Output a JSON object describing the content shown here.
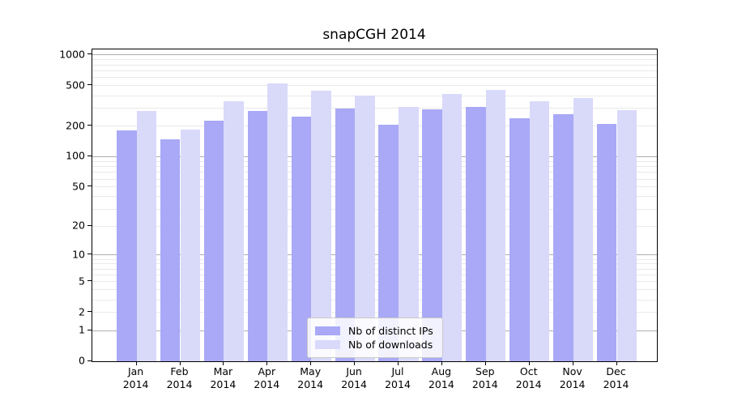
{
  "title": "snapCGH 2014",
  "chart_data": {
    "type": "bar",
    "title": "snapCGH 2014",
    "categories": [
      "Jan",
      "Feb",
      "Mar",
      "Apr",
      "May",
      "Jun",
      "Jul",
      "Aug",
      "Sep",
      "Oct",
      "Nov",
      "Dec"
    ],
    "year": "2014",
    "series": [
      {
        "name": "Nb of distinct IPs",
        "color": "#a9a9f7",
        "values": [
          183,
          148,
          228,
          280,
          250,
          298,
          205,
          293,
          311,
          241,
          264,
          209
        ]
      },
      {
        "name": "Nb of downloads",
        "color": "#d9d9fa",
        "values": [
          285,
          185,
          355,
          530,
          450,
          397,
          307,
          412,
          457,
          354,
          378,
          287
        ]
      }
    ],
    "y_scale": "log10(1+x)",
    "y_ticks": [
      0,
      1,
      2,
      5,
      10,
      20,
      50,
      100,
      200,
      500,
      1000
    ],
    "y_axis_top_value": 1120,
    "xlabel": "",
    "ylabel": "",
    "grid": "horizontal major+minor",
    "legend_position": "lower center"
  },
  "colors": {
    "major_gridline": "#aeaeae",
    "minor_gridline": "#e9e9e9",
    "frame": "#000000",
    "background": "#ffffff"
  }
}
